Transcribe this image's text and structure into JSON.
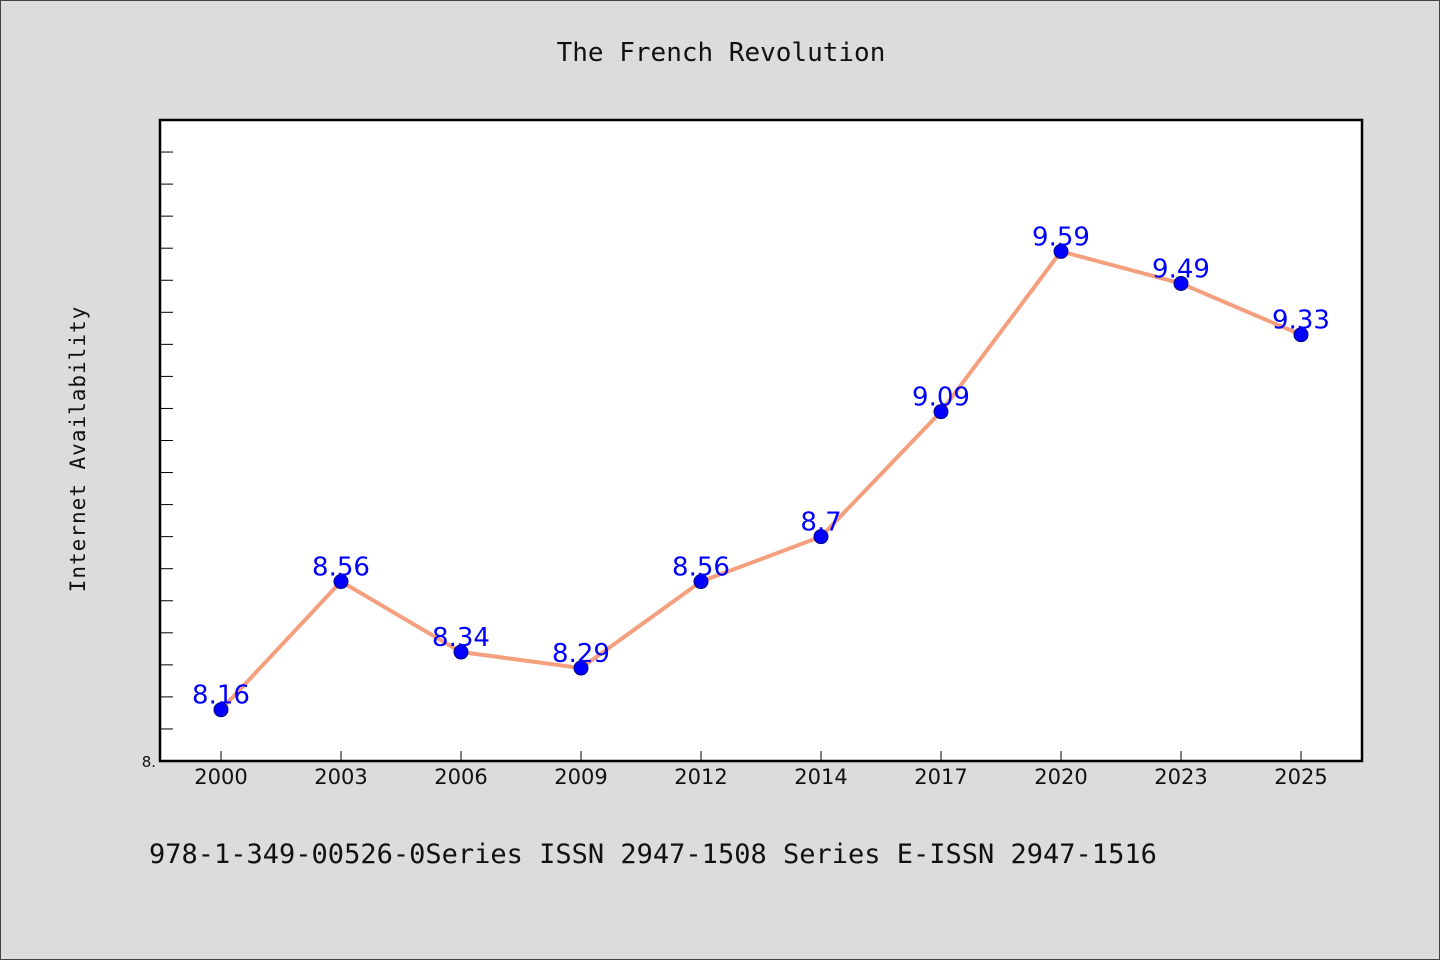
{
  "chart_data": {
    "type": "line",
    "title": "The French Revolution",
    "ylabel": "Internet Availability",
    "xlabel": "",
    "footer": "978-1-349-00526-0Series ISSN 2947-1508 Series E-ISSN 2947-1516",
    "categories": [
      "2000",
      "2003",
      "2006",
      "2009",
      "2012",
      "2014",
      "2017",
      "2020",
      "2023",
      "2025"
    ],
    "series": [
      {
        "values": [
          8.16,
          8.56,
          8.34,
          8.29,
          8.56,
          8.7,
          9.09,
          9.59,
          9.49,
          9.33
        ],
        "labels": [
          "8.16",
          "8.56",
          "8.34",
          "8.29",
          "8.56",
          "8.7",
          "9.09",
          "9.59",
          "9.49",
          "9.33"
        ],
        "line_color": "#f4a07f",
        "marker_color": "#0000ff"
      }
    ],
    "ylim": [
      8.0,
      10.0
    ],
    "y_tick_label": "8.",
    "y_minor_step": 0.1,
    "grid": false,
    "colors": {
      "background": "#dcdcdc",
      "plot_background": "#ffffff",
      "label_color": "#0000ff"
    }
  }
}
